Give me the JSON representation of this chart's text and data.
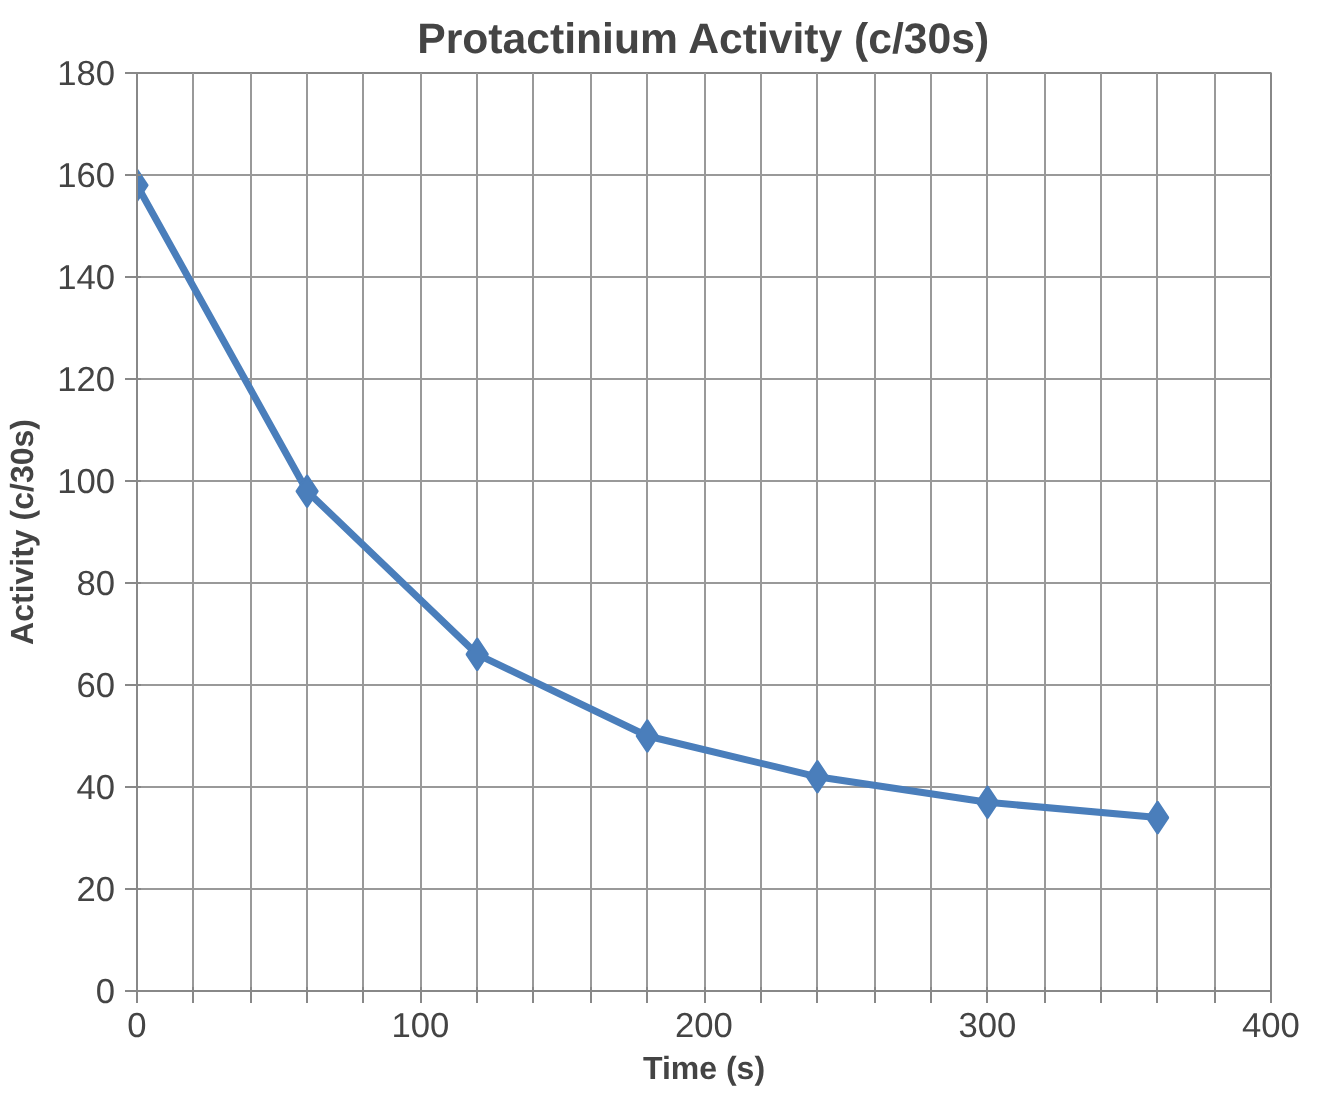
{
  "chart_data": {
    "type": "line",
    "title": "Protactinium Activity (c/30s)",
    "xlabel": "Time (s)",
    "ylabel": "Activity (c/30s)",
    "x": [
      0,
      60,
      120,
      180,
      240,
      300,
      360
    ],
    "series": [
      {
        "color": "#4a7ebb",
        "values": [
          158,
          98,
          66,
          50,
          42,
          37,
          34
        ]
      }
    ],
    "xlim": [
      0,
      400
    ],
    "ylim": [
      0,
      180
    ],
    "xticks": [
      0,
      {
        "value": 20,
        "label": null
      },
      {
        "value": 40,
        "label": null
      },
      {
        "value": 60,
        "label": null
      },
      {
        "value": 80,
        "label": null
      },
      100,
      {
        "value": 120,
        "label": null
      },
      {
        "value": 140,
        "label": null
      },
      {
        "value": 160,
        "label": null
      },
      {
        "value": 180,
        "label": null
      },
      200,
      {
        "value": 220,
        "label": null
      },
      {
        "value": 240,
        "label": null
      },
      {
        "value": 260,
        "label": null
      },
      {
        "value": 280,
        "label": null
      },
      300,
      {
        "value": 320,
        "label": null
      },
      {
        "value": 340,
        "label": null
      },
      {
        "value": 360,
        "label": null
      },
      {
        "value": 380,
        "label": null
      },
      400
    ],
    "yticks": [
      0,
      20,
      40,
      60,
      80,
      100,
      120,
      140,
      160,
      180
    ],
    "grid": true,
    "marker": "diamond",
    "line_style": "solid"
  }
}
